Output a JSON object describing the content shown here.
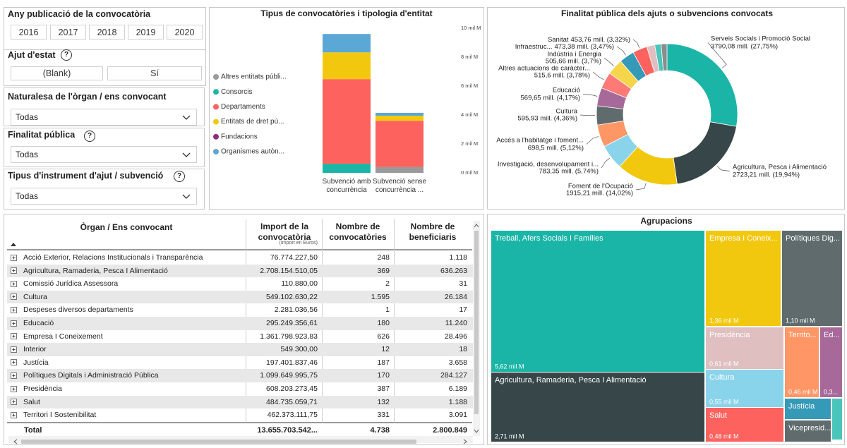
{
  "filters": [
    {
      "title": "Any publicació de la convocatòria",
      "options": [
        "2016",
        "2017",
        "2018",
        "2019",
        "2020"
      ]
    },
    {
      "title": "Ajut d'estat",
      "help": "?",
      "options": [
        "(Blank)",
        "Sí"
      ]
    },
    {
      "title": "Naturalesa de l'òrgan / ens convocant",
      "selected": "Todas"
    },
    {
      "title": "Finalitat pública",
      "help": "?",
      "selected": "Todas"
    },
    {
      "title": "Tipus d'instrument d'ajut / subvenció",
      "help": "?",
      "selected": "Todas"
    }
  ],
  "chart_data": [
    {
      "type": "bar",
      "stacked": true,
      "title": "Tipus de convocatòries i tipologia d'entitat",
      "categories": [
        "Subvenció amb concurrència",
        "Subvenció sense concurrència ..."
      ],
      "series": [
        {
          "name": "Altres entitats públi...",
          "color": "#9a9a9a",
          "values": [
            0,
            0.4
          ]
        },
        {
          "name": "Consorcis",
          "color": "#1ab5a6",
          "values": [
            0.63,
            0
          ]
        },
        {
          "name": "Departaments",
          "color": "#fd625e",
          "values": [
            5.85,
            3.2
          ]
        },
        {
          "name": "Entitats de dret pú...",
          "color": "#f2c80f",
          "values": [
            1.85,
            0.35
          ]
        },
        {
          "name": "Fundacions",
          "color": "#8b2f82",
          "values": [
            0,
            0
          ]
        },
        {
          "name": "Organismes autòn...",
          "color": "#5ba7d6",
          "values": [
            1.27,
            0.2
          ]
        }
      ],
      "ylim": [
        0,
        10
      ],
      "yticks": [
        {
          "value": 0,
          "label": "0 mil M"
        },
        {
          "value": 2,
          "label": "2 mil M"
        },
        {
          "value": 4,
          "label": "4 mil M"
        },
        {
          "value": 6,
          "label": "6 mil M"
        },
        {
          "value": 8,
          "label": "8 mil M"
        },
        {
          "value": 10,
          "label": "10 mil M"
        }
      ],
      "y_axis_side": "right",
      "legend": "left",
      "grid": false
    },
    {
      "type": "pie",
      "donut": true,
      "title": "Finalitat pública dels ajuts o subvencions convocats",
      "categories": [
        "Serveis Socials i Promoció Social",
        "Agricultura, Pesca i Alimentació",
        "Foment de l'Ocupació",
        "Investigació, desenvolupament i...",
        "Accés a l'habitatge i foment...",
        "Cultura",
        "Educació",
        "Altres actuacions de caràcter...",
        "Indústria i Energia",
        "Infraestruc...",
        "Sanitat",
        null,
        null,
        null
      ],
      "values": [
        3790.08,
        2723.21,
        1915.21,
        783.35,
        698.5,
        595.93,
        569.65,
        515.6,
        505.66,
        473.38,
        453.76,
        250,
        200,
        182
      ],
      "value_labels": [
        "3790,08 mill. (27,75%)",
        "2723,21 mill. (19,94%)",
        "1915,21 mill. (14,02%)",
        "783,35 mill. (5,74%)",
        "698,5 mill. (5,12%)",
        "595,93 mill. (4,36%)",
        "569,65 mill. (4,17%)",
        "515,6 mill. (3,78%)",
        "505,66 mill. (3,7%)",
        "473,38 mill. (3,47%)",
        "453,76 mill. (3,32%)",
        null,
        null,
        null
      ],
      "colors": [
        "#1ab5a6",
        "#374649",
        "#f2c80f",
        "#8ad4eb",
        "#fe9666",
        "#5f6b6d",
        "#a66999",
        "#fd7a76",
        "#f5d54a",
        "#3599b8",
        "#fd625e",
        "#dfbfbf",
        "#4ac5bb",
        "#8c8c8c"
      ]
    },
    {
      "type": "treemap",
      "title": "Agrupacions",
      "categories": [
        "Treball, Afers Socials I Famílies",
        "Agricultura, Ramaderia, Pesca I Alimentació",
        "Empresa I Coneix...",
        "Polítiques Dig...",
        "Presidència",
        "Cultura",
        "Salut",
        "Territo...",
        "Ed...",
        "Justícia",
        "Vicepresid...",
        null
      ],
      "values": [
        5.62,
        2.71,
        1.36,
        1.1,
        0.61,
        0.55,
        0.48,
        0.46,
        0.3,
        0.2,
        0.19,
        0.08
      ],
      "value_labels": [
        "5,62 mil M",
        "2,71 mil M",
        "1,36 mil M",
        "1,10 mil M",
        "0,61 mil M",
        "0,55 mil M",
        "0,48 mil M",
        "0,46 mil M",
        "0,3...",
        null,
        null,
        null
      ],
      "colors": [
        "#1ab5a6",
        "#374649",
        "#f2c80f",
        "#5f6b6d",
        "#dfbfbf",
        "#8ad4eb",
        "#fd625e",
        "#fe9666",
        "#a66999",
        "#3599b8",
        "#5f6b6d",
        "#4ac5bb"
      ]
    }
  ],
  "table": {
    "columns": [
      "Òrgan / Ens convocant",
      "Import de la convocatòria",
      "Nombre de convocatòries",
      "Nombre de beneficiaris"
    ],
    "column_note": "(Import en Euros)",
    "rows": [
      [
        "Acció Exterior,  Relacions Institucionals i Transparència",
        "76.774.227,50",
        "248",
        "1.118"
      ],
      [
        "Agricultura, Ramaderia, Pesca I Alimentació",
        "2.708.154.510,05",
        "369",
        "636.263"
      ],
      [
        "Comissió Jurídica Assessora",
        "110.880,00",
        "2",
        "31"
      ],
      [
        "Cultura",
        "549.102.630,22",
        "1.595",
        "26.184"
      ],
      [
        "Despeses diversos departaments",
        "2.281.036,56",
        "1",
        "17"
      ],
      [
        "Educació",
        "295.249.356,61",
        "180",
        "11.240"
      ],
      [
        "Empresa I Coneixement",
        "1.361.798.923,83",
        "626",
        "28.496"
      ],
      [
        "Interior",
        "549.300,00",
        "12",
        "18"
      ],
      [
        "Justícia",
        "197.401.837,46",
        "187",
        "3.658"
      ],
      [
        "Polítiques Digitals i Administració Pública",
        "1.099.649.995,75",
        "170",
        "284.127"
      ],
      [
        "Presidència",
        "608.203.273,45",
        "387",
        "6.189"
      ],
      [
        "Salut",
        "484.735.059,71",
        "132",
        "1.188"
      ],
      [
        "Territori I Sostenibilitat",
        "462.373.111,75",
        "331",
        "3.091"
      ]
    ],
    "total": [
      "Total",
      "13.655.703.542...",
      "4.738",
      "2.800.849"
    ]
  }
}
